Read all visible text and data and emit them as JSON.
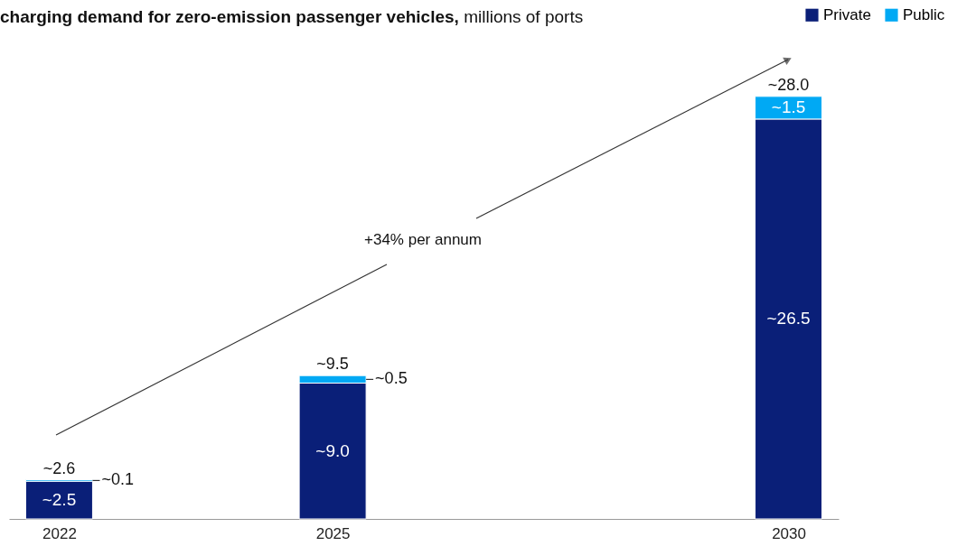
{
  "chart_data": {
    "type": "bar",
    "stacked": true,
    "title": "charging demand for zero-emission passenger vehicles,",
    "subtitle": "millions of ports",
    "x": [
      2022,
      2025,
      2030
    ],
    "xlim": [
      2021.5,
      2030.5
    ],
    "xticks": [
      2022,
      2025,
      2030
    ],
    "series": [
      {
        "name": "Private",
        "color": "#0a1f78",
        "values": [
          2.5,
          9.0,
          26.5
        ],
        "value_labels": [
          "~2.5",
          "~9.0",
          "~26.5"
        ]
      },
      {
        "name": "Public",
        "color": "#00a9f4",
        "values": [
          0.1,
          0.5,
          1.5
        ],
        "value_labels": [
          "~0.1",
          "~0.5",
          "~1.5"
        ]
      }
    ],
    "totals": [
      "~2.6",
      "~9.5",
      "~28.0"
    ],
    "annotations": [
      "+34% per annum"
    ],
    "legend": "top right",
    "grid": false
  }
}
